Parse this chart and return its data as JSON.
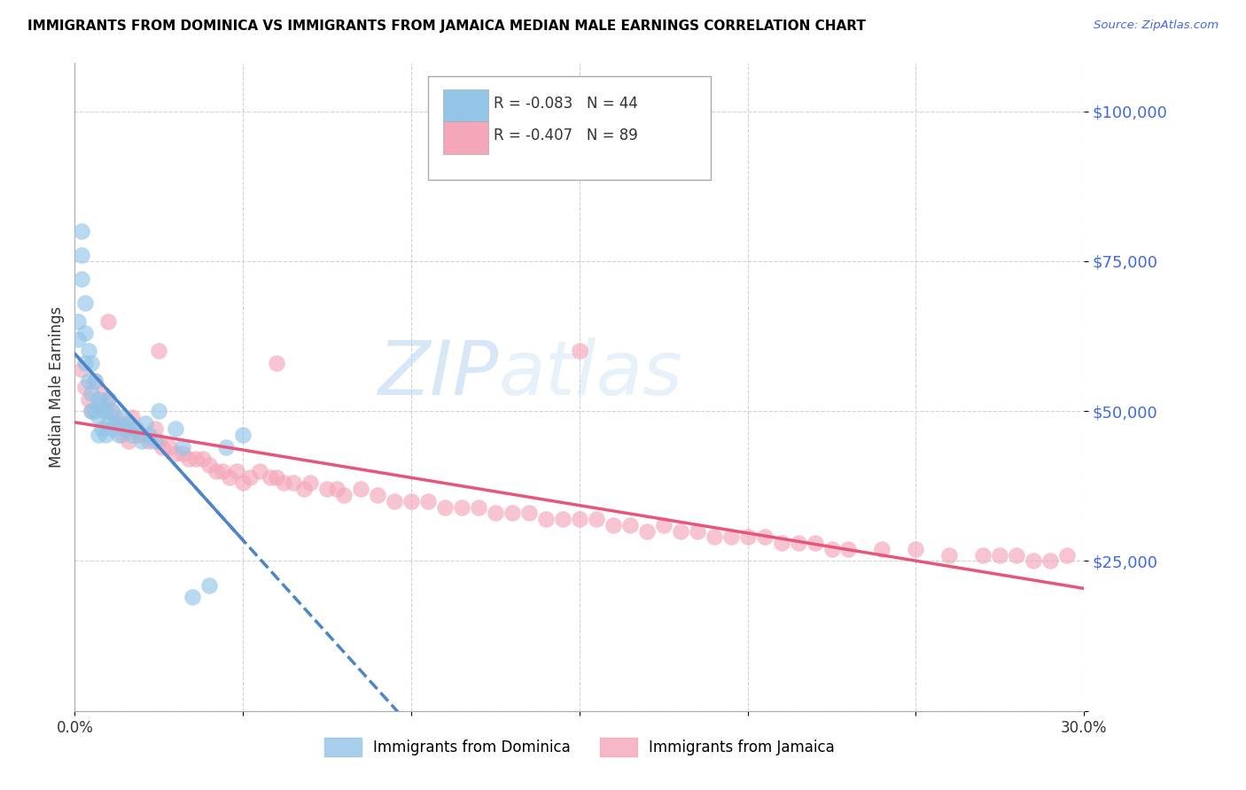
{
  "title": "IMMIGRANTS FROM DOMINICA VS IMMIGRANTS FROM JAMAICA MEDIAN MALE EARNINGS CORRELATION CHART",
  "source": "Source: ZipAtlas.com",
  "ylabel": "Median Male Earnings",
  "y_ticks": [
    0,
    25000,
    50000,
    75000,
    100000
  ],
  "y_tick_labels": [
    "",
    "$25,000",
    "$50,000",
    "$75,000",
    "$100,000"
  ],
  "x_min": 0.0,
  "x_max": 0.3,
  "y_min": 0,
  "y_max": 108000,
  "legend_r1": "R = -0.083",
  "legend_n1": "N = 44",
  "legend_r2": "R = -0.407",
  "legend_n2": "N = 89",
  "legend_label1": "Immigrants from Dominica",
  "legend_label2": "Immigrants from Jamaica",
  "color_dominica": "#92c5e8",
  "color_jamaica": "#f4a7b9",
  "color_dominica_line": "#4a86c8",
  "color_jamaica_line": "#e8557a",
  "watermark_zip": "ZIP",
  "watermark_atlas": "atlas",
  "dominica_x": [
    0.001,
    0.001,
    0.002,
    0.002,
    0.002,
    0.003,
    0.003,
    0.003,
    0.004,
    0.004,
    0.005,
    0.005,
    0.005,
    0.006,
    0.006,
    0.007,
    0.007,
    0.007,
    0.008,
    0.008,
    0.009,
    0.009,
    0.01,
    0.01,
    0.011,
    0.011,
    0.012,
    0.013,
    0.014,
    0.015,
    0.016,
    0.017,
    0.018,
    0.02,
    0.021,
    0.022,
    0.024,
    0.025,
    0.03,
    0.032,
    0.035,
    0.04,
    0.045,
    0.05
  ],
  "dominica_y": [
    65000,
    62000,
    80000,
    76000,
    72000,
    68000,
    63000,
    58000,
    60000,
    55000,
    58000,
    53000,
    50000,
    55000,
    50000,
    52000,
    49000,
    46000,
    51000,
    47000,
    50000,
    46000,
    52000,
    48000,
    50000,
    47000,
    48000,
    46000,
    49000,
    47000,
    48000,
    46000,
    47000,
    45000,
    48000,
    46000,
    45000,
    50000,
    47000,
    44000,
    19000,
    21000,
    44000,
    46000
  ],
  "jamaica_x": [
    0.002,
    0.003,
    0.004,
    0.005,
    0.006,
    0.007,
    0.008,
    0.009,
    0.01,
    0.011,
    0.012,
    0.013,
    0.014,
    0.015,
    0.016,
    0.017,
    0.018,
    0.019,
    0.02,
    0.022,
    0.024,
    0.025,
    0.026,
    0.028,
    0.03,
    0.032,
    0.034,
    0.036,
    0.038,
    0.04,
    0.042,
    0.044,
    0.046,
    0.048,
    0.05,
    0.052,
    0.055,
    0.058,
    0.06,
    0.062,
    0.065,
    0.068,
    0.07,
    0.075,
    0.078,
    0.08,
    0.085,
    0.09,
    0.095,
    0.1,
    0.105,
    0.11,
    0.115,
    0.12,
    0.125,
    0.13,
    0.135,
    0.14,
    0.145,
    0.15,
    0.155,
    0.16,
    0.165,
    0.17,
    0.175,
    0.18,
    0.185,
    0.19,
    0.195,
    0.2,
    0.205,
    0.21,
    0.215,
    0.22,
    0.225,
    0.23,
    0.24,
    0.25,
    0.26,
    0.27,
    0.275,
    0.28,
    0.285,
    0.29,
    0.295,
    0.01,
    0.025,
    0.06,
    0.15
  ],
  "jamaica_y": [
    57000,
    54000,
    52000,
    50000,
    55000,
    51000,
    53000,
    50000,
    52000,
    50000,
    49000,
    48000,
    46000,
    47000,
    45000,
    49000,
    47000,
    46000,
    46000,
    45000,
    47000,
    45000,
    44000,
    44000,
    43000,
    43000,
    42000,
    42000,
    42000,
    41000,
    40000,
    40000,
    39000,
    40000,
    38000,
    39000,
    40000,
    39000,
    39000,
    38000,
    38000,
    37000,
    38000,
    37000,
    37000,
    36000,
    37000,
    36000,
    35000,
    35000,
    35000,
    34000,
    34000,
    34000,
    33000,
    33000,
    33000,
    32000,
    32000,
    32000,
    32000,
    31000,
    31000,
    30000,
    31000,
    30000,
    30000,
    29000,
    29000,
    29000,
    29000,
    28000,
    28000,
    28000,
    27000,
    27000,
    27000,
    27000,
    26000,
    26000,
    26000,
    26000,
    25000,
    25000,
    26000,
    65000,
    60000,
    58000,
    60000
  ]
}
